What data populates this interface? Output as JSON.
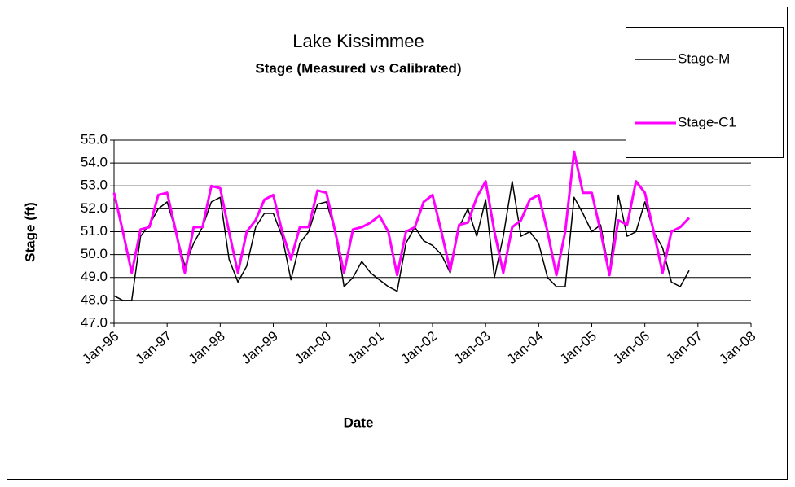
{
  "chart_data": {
    "type": "line",
    "title": "Lake Kissimmee",
    "subtitle": "Stage (Measured vs Calibrated)",
    "y_label": "Stage (ft)",
    "x_label": "Date",
    "legend": "top-right",
    "grid": true,
    "x": [
      "1996-01",
      "1996-03",
      "1996-05",
      "1996-07",
      "1996-09",
      "1996-11",
      "1997-01",
      "1997-03",
      "1997-05",
      "1997-07",
      "1997-09",
      "1997-11",
      "1998-01",
      "1998-03",
      "1998-05",
      "1998-07",
      "1998-09",
      "1998-11",
      "1999-01",
      "1999-03",
      "1999-05",
      "1999-07",
      "1999-09",
      "1999-11",
      "2000-01",
      "2000-03",
      "2000-05",
      "2000-07",
      "2000-09",
      "2000-11",
      "2001-01",
      "2001-03",
      "2001-05",
      "2001-07",
      "2001-09",
      "2001-11",
      "2002-01",
      "2002-03",
      "2002-05",
      "2002-07",
      "2002-09",
      "2002-11",
      "2003-01",
      "2003-03",
      "2003-05",
      "2003-07",
      "2003-09",
      "2003-11",
      "2004-01",
      "2004-03",
      "2004-05",
      "2004-07",
      "2004-09",
      "2004-11",
      "2005-01",
      "2005-03",
      "2005-05",
      "2005-07",
      "2005-09",
      "2005-11",
      "2006-01",
      "2006-03",
      "2006-05",
      "2006-07",
      "2006-09",
      "2006-11"
    ],
    "series": [
      {
        "name": "Stage-M",
        "color": "#000000",
        "width": 1.5,
        "values": [
          48.2,
          48.0,
          48.0,
          50.8,
          51.3,
          52.0,
          52.3,
          51.0,
          49.5,
          50.5,
          51.2,
          52.3,
          52.5,
          49.8,
          48.8,
          49.5,
          51.2,
          51.8,
          51.8,
          50.8,
          48.9,
          50.5,
          51.0,
          52.2,
          52.3,
          51.0,
          48.6,
          49.0,
          49.7,
          49.2,
          48.9,
          48.6,
          48.4,
          50.5,
          51.2,
          50.6,
          50.4,
          50.0,
          49.2,
          51.2,
          52.0,
          50.8,
          52.4,
          49.0,
          50.8,
          53.2,
          50.8,
          51.0,
          50.5,
          49.0,
          48.6,
          48.6,
          52.5,
          51.8,
          51.0,
          51.3,
          49.2,
          52.6,
          50.8,
          51.0,
          52.3,
          51.0,
          50.3,
          48.8,
          48.6,
          49.3
        ]
      },
      {
        "name": "Stage-C1",
        "color": "#ff00ff",
        "width": 3,
        "values": [
          52.7,
          51.0,
          49.2,
          51.1,
          51.2,
          52.6,
          52.7,
          51.0,
          49.2,
          51.2,
          51.2,
          53.0,
          52.9,
          51.0,
          49.2,
          51.0,
          51.5,
          52.4,
          52.6,
          51.0,
          49.8,
          51.2,
          51.2,
          52.8,
          52.7,
          51.0,
          49.2,
          51.1,
          51.2,
          51.4,
          51.7,
          51.0,
          49.1,
          51.0,
          51.2,
          52.3,
          52.6,
          51.0,
          49.3,
          51.3,
          51.4,
          52.5,
          53.2,
          51.0,
          49.2,
          51.2,
          51.5,
          52.4,
          52.6,
          51.0,
          49.1,
          51.0,
          54.5,
          52.7,
          52.7,
          51.0,
          49.1,
          51.5,
          51.3,
          53.2,
          52.7,
          51.0,
          49.2,
          51.0,
          51.2,
          51.6
        ]
      }
    ],
    "xlim": [
      "1996-01",
      "2008-01"
    ],
    "xticks": [
      {
        "value": "1996-01",
        "label": "Jan-96"
      },
      {
        "value": "1997-01",
        "label": "Jan-97"
      },
      {
        "value": "1998-01",
        "label": "Jan-98"
      },
      {
        "value": "1999-01",
        "label": "Jan-99"
      },
      {
        "value": "2000-01",
        "label": "Jan-00"
      },
      {
        "value": "2001-01",
        "label": "Jan-01"
      },
      {
        "value": "2002-01",
        "label": "Jan-02"
      },
      {
        "value": "2003-01",
        "label": "Jan-03"
      },
      {
        "value": "2004-01",
        "label": "Jan-04"
      },
      {
        "value": "2005-01",
        "label": "Jan-05"
      },
      {
        "value": "2006-01",
        "label": "Jan-06"
      },
      {
        "value": "2007-01",
        "label": "Jan-07"
      },
      {
        "value": "2008-01",
        "label": "Jan-08"
      }
    ],
    "ylim": [
      47,
      55
    ],
    "yticks": [
      {
        "value": 47,
        "label": "47.0"
      },
      {
        "value": 48,
        "label": "48.0"
      },
      {
        "value": 49,
        "label": "49.0"
      },
      {
        "value": 50,
        "label": "50.0"
      },
      {
        "value": 51,
        "label": "51.0"
      },
      {
        "value": 52,
        "label": "52.0"
      },
      {
        "value": 53,
        "label": "53.0"
      },
      {
        "value": 54,
        "label": "54.0"
      },
      {
        "value": 55,
        "label": "55.0"
      }
    ]
  }
}
